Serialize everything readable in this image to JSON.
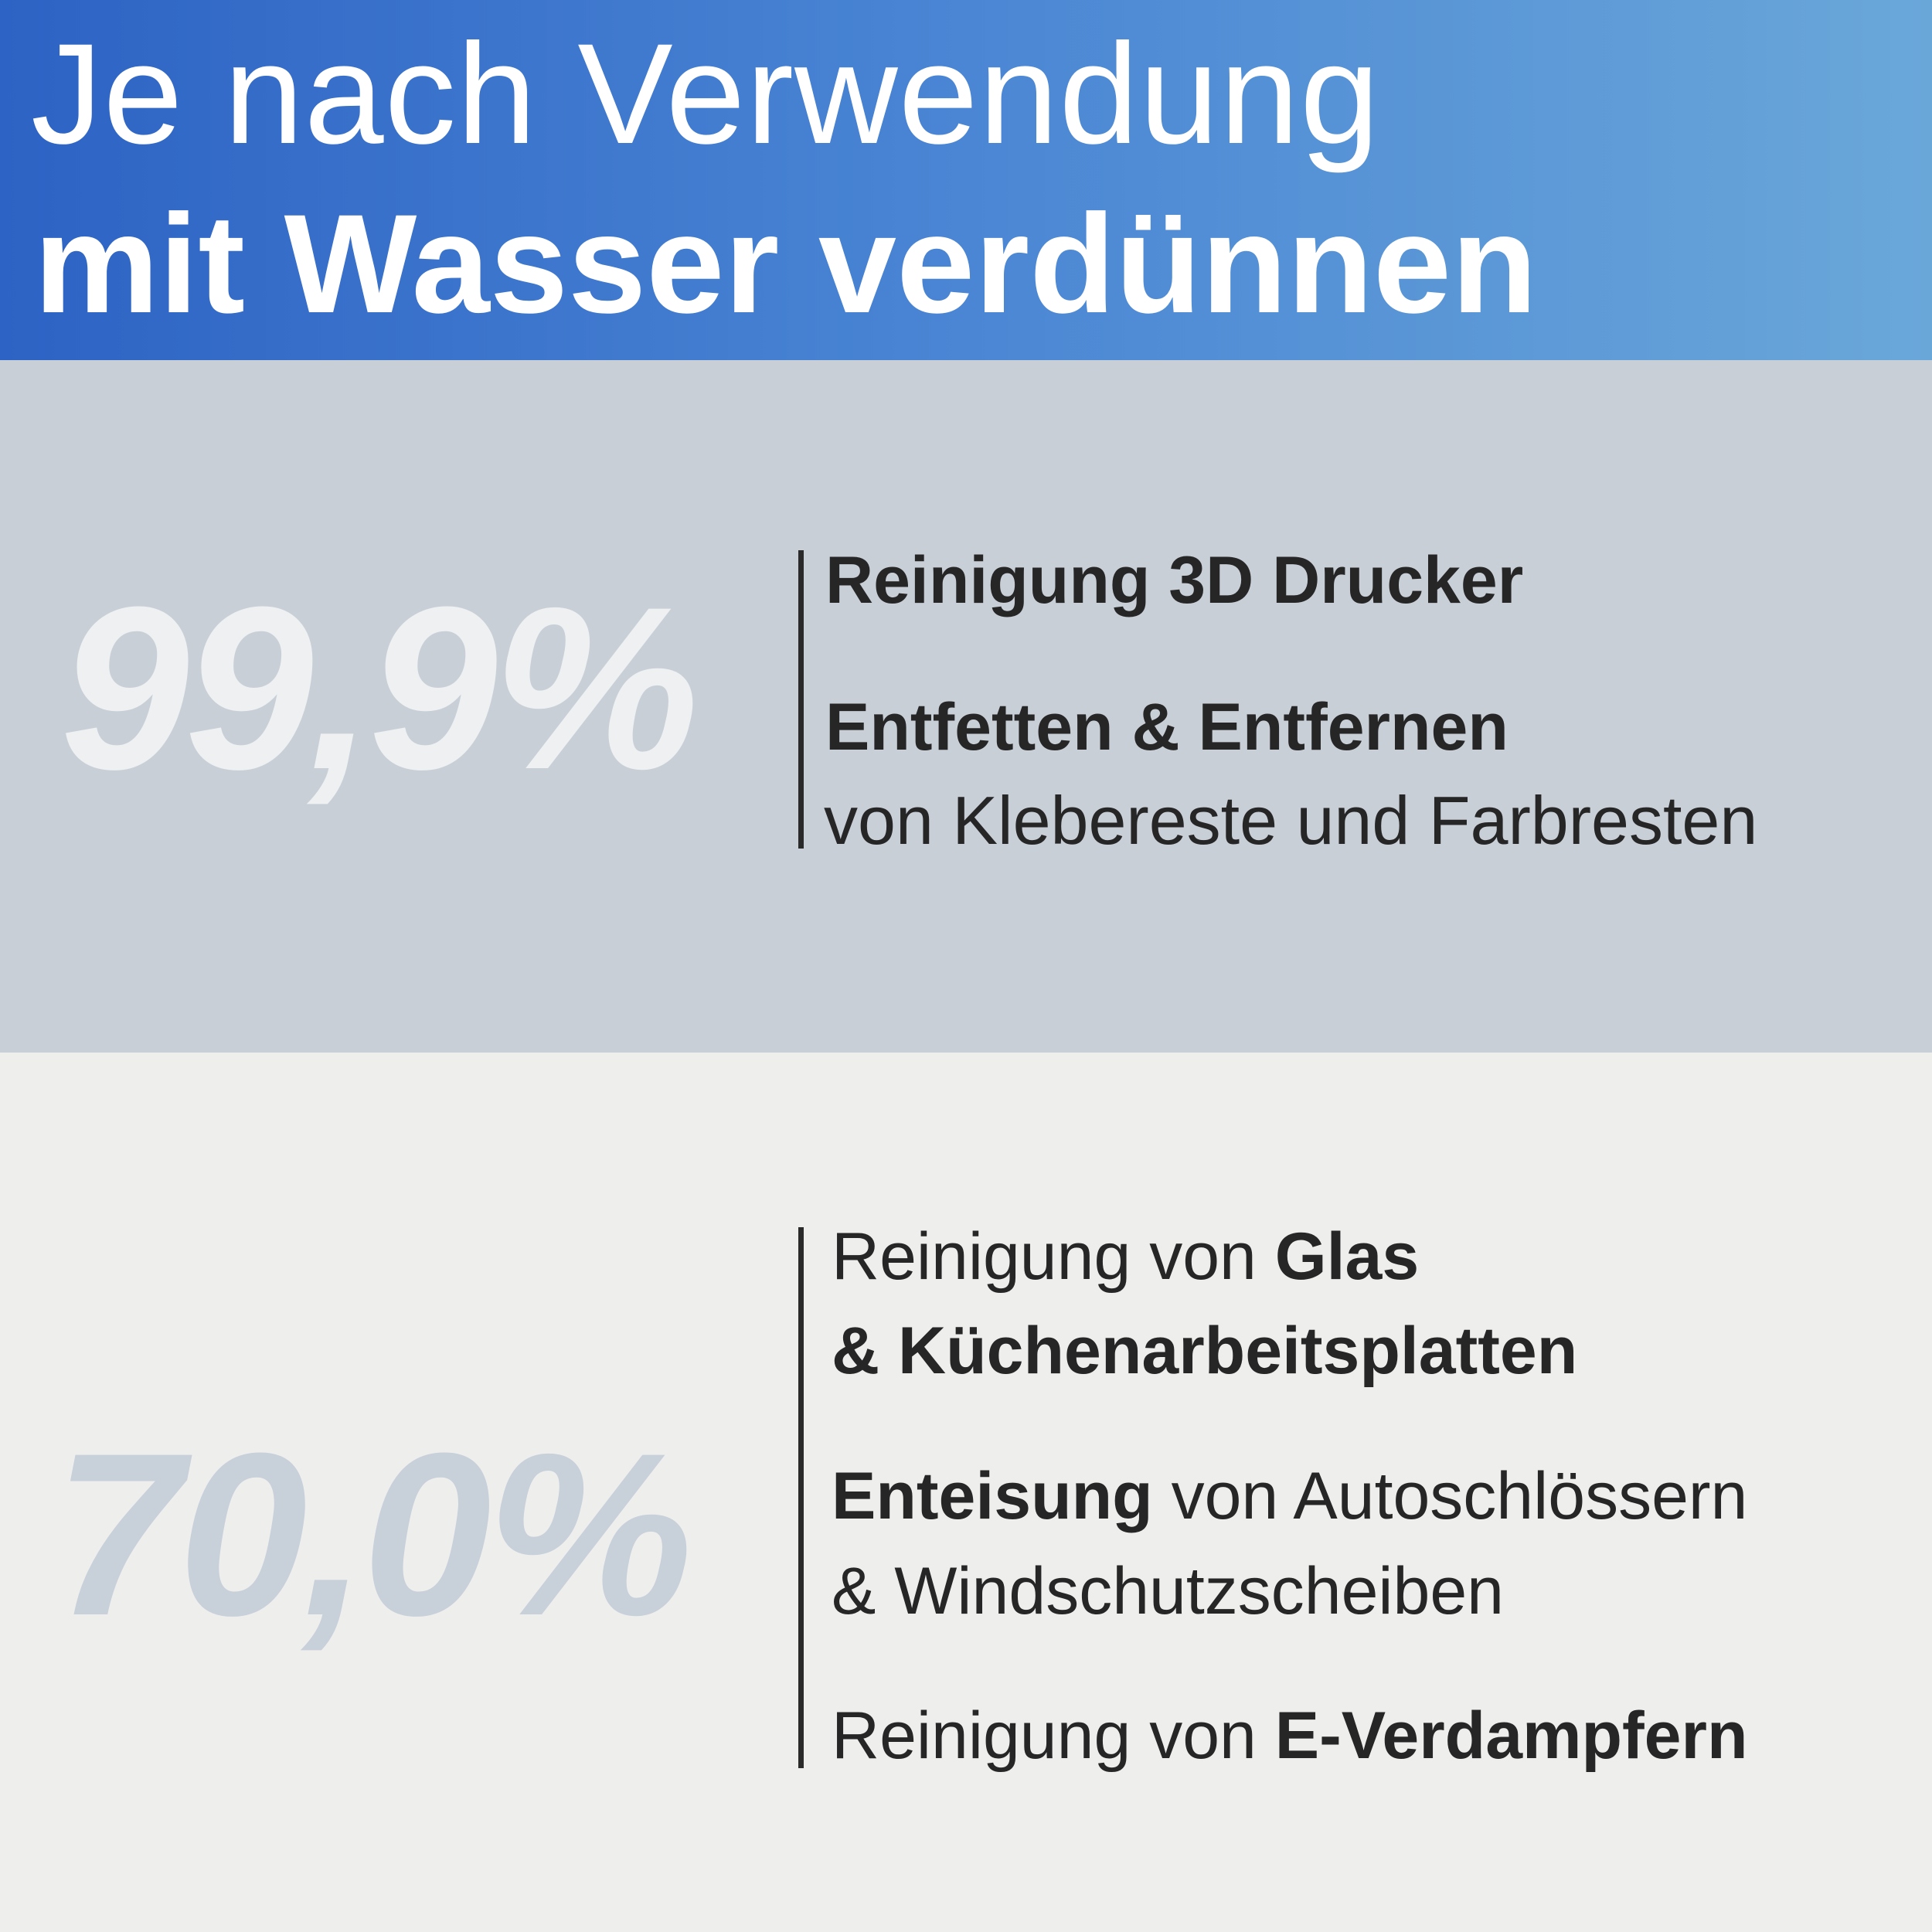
{
  "header": {
    "line1": "Je nach Verwendung",
    "line2": "mit Wasser verdünnen",
    "gradient_start": "#2d63c4",
    "gradient_end": "#6aa7d9"
  },
  "section1": {
    "percentage": "99,9%",
    "item1": "Reinigung 3D Drucker",
    "item2_bold": "Entfetten & Entfernen",
    "item2_line2": "von Klebereste und Farbresten",
    "background": "#c8cfd7"
  },
  "section2": {
    "percentage": "70,0%",
    "item1_pre": "Reinigung von ",
    "item1_bold": "Glas",
    "item1_line2": "& Küchenarbeitsplatten",
    "item2_bold": "Enteisung",
    "item2_rest": " von Autoschlössern",
    "item2_line2": "& Windschutzscheiben",
    "item3_pre": "Reinigung von ",
    "item3_bold": "E-Verdampfern",
    "background": "#eeeeed"
  }
}
